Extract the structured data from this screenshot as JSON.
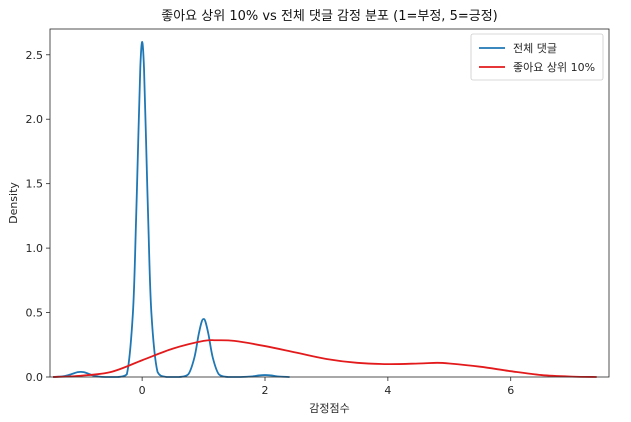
{
  "chart_data": {
    "type": "line",
    "title": "좋아요 상위 10% vs 전체 댓글 감정 분포 (1=부정, 5=긍정)",
    "xlabel": "감정점수",
    "ylabel": "Density",
    "xlim": [
      -1.5,
      7.6
    ],
    "ylim": [
      0,
      2.7
    ],
    "xticks": [
      0,
      2,
      4,
      6
    ],
    "yticks": [
      0.0,
      0.5,
      1.0,
      1.5,
      2.0,
      2.5
    ],
    "grid": false,
    "legend_position": "top-right",
    "series": [
      {
        "name": "전체 댓글",
        "color": "#1f77b4",
        "x": [
          -1.45,
          -1.3,
          -1.2,
          -1.1,
          -1.05,
          -1.0,
          -0.95,
          -0.9,
          -0.8,
          -0.7,
          -0.6,
          -0.4,
          -0.25,
          -0.15,
          -0.1,
          -0.06,
          -0.03,
          0.0,
          0.03,
          0.06,
          0.1,
          0.15,
          0.25,
          0.4,
          0.6,
          0.75,
          0.85,
          0.92,
          0.97,
          1.0,
          1.03,
          1.08,
          1.15,
          1.25,
          1.4,
          1.6,
          1.8,
          1.9,
          2.0,
          2.1,
          2.2,
          2.4
        ],
        "y": [
          0.0,
          0.005,
          0.015,
          0.03,
          0.038,
          0.04,
          0.038,
          0.03,
          0.012,
          0.003,
          0.0,
          0.0,
          0.02,
          0.5,
          1.2,
          1.9,
          2.4,
          2.6,
          2.4,
          1.9,
          1.2,
          0.5,
          0.04,
          0.0,
          0.0,
          0.02,
          0.15,
          0.33,
          0.43,
          0.45,
          0.43,
          0.33,
          0.15,
          0.02,
          0.0,
          0.0,
          0.005,
          0.012,
          0.015,
          0.012,
          0.005,
          0.0
        ]
      },
      {
        "name": "좋아요 상위 10%",
        "color": "#e31a1c",
        "x": [
          -1.45,
          -1.0,
          -0.5,
          0.0,
          0.5,
          1.0,
          1.2,
          1.5,
          2.0,
          2.5,
          3.0,
          3.5,
          4.0,
          4.5,
          4.8,
          5.0,
          5.5,
          6.0,
          6.5,
          7.0,
          7.4
        ],
        "y": [
          0.0,
          0.01,
          0.04,
          0.13,
          0.22,
          0.28,
          0.285,
          0.28,
          0.24,
          0.19,
          0.14,
          0.11,
          0.1,
          0.105,
          0.11,
          0.105,
          0.08,
          0.045,
          0.015,
          0.003,
          0.0
        ]
      }
    ]
  }
}
